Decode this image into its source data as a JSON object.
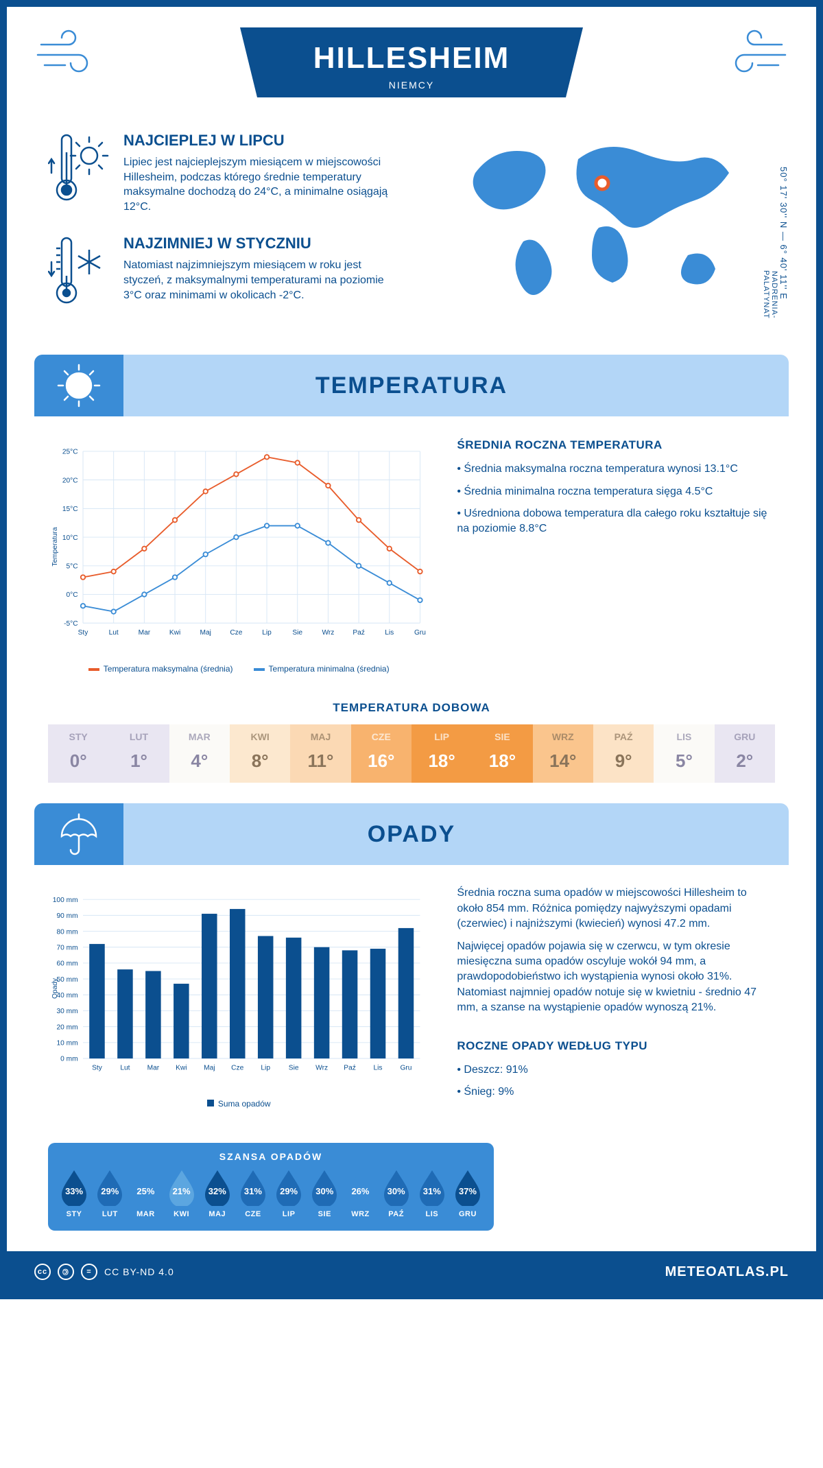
{
  "header": {
    "city": "HILLESHEIM",
    "country": "NIEMCY",
    "coords": "50° 17' 30'' N — 6° 40' 11'' E",
    "region": "NADRENIA-PALATYNAT"
  },
  "hot": {
    "title": "NAJCIEPLEJ W LIPCU",
    "text": "Lipiec jest najcieplejszym miesiącem w miejscowości Hillesheim, podczas którego średnie temperatury maksymalne dochodzą do 24°C, a minimalne osiągają 12°C."
  },
  "cold": {
    "title": "NAJZIMNIEJ W STYCZNIU",
    "text": "Natomiast najzimniejszym miesiącem w roku jest styczeń, z maksymalnymi temperaturami na poziomie 3°C oraz minimami w okolicach -2°C."
  },
  "months": [
    "Sty",
    "Lut",
    "Mar",
    "Kwi",
    "Maj",
    "Cze",
    "Lip",
    "Sie",
    "Wrz",
    "Paź",
    "Lis",
    "Gru"
  ],
  "months_upper": [
    "STY",
    "LUT",
    "MAR",
    "KWI",
    "MAJ",
    "CZE",
    "LIP",
    "SIE",
    "WRZ",
    "PAŹ",
    "LIS",
    "GRU"
  ],
  "temp_section": {
    "title": "TEMPERATURA",
    "chart": {
      "type": "line",
      "ylabel": "Temperatura",
      "ylim": [
        -5,
        25
      ],
      "ytick_step": 5,
      "ytick_labels": [
        "-5°C",
        "0°C",
        "5°C",
        "10°C",
        "15°C",
        "20°C",
        "25°C"
      ],
      "grid_color": "#d6e6f5",
      "series": [
        {
          "name": "Temperatura maksymalna (średnia)",
          "color": "#e85c2b",
          "values": [
            3,
            4,
            8,
            13,
            18,
            21,
            24,
            23,
            19,
            13,
            8,
            4
          ]
        },
        {
          "name": "Temperatura minimalna (średnia)",
          "color": "#3a8cd6",
          "values": [
            -2,
            -3,
            0,
            3,
            7,
            10,
            12,
            12,
            9,
            5,
            2,
            -1
          ]
        }
      ]
    },
    "stats_title": "ŚREDNIA ROCZNA TEMPERATURA",
    "stats": [
      "Średnia maksymalna roczna temperatura wynosi 13.1°C",
      "Średnia minimalna roczna temperatura sięga 4.5°C",
      "Uśredniona dobowa temperatura dla całego roku kształtuje się na poziomie 8.8°C"
    ],
    "daily_title": "TEMPERATURA DOBOWA",
    "daily_values": [
      "0°",
      "1°",
      "4°",
      "8°",
      "11°",
      "16°",
      "18°",
      "18°",
      "14°",
      "9°",
      "5°",
      "2°"
    ],
    "daily_colors": [
      "#e9e6f2",
      "#e9e6f2",
      "#fbfaf7",
      "#fce8cf",
      "#fbd9b4",
      "#f8b36e",
      "#f39b44",
      "#f39b44",
      "#fac58d",
      "#fce3c6",
      "#fbfaf7",
      "#e9e6f2"
    ],
    "daily_text_colors": [
      "#8a86a3",
      "#8a86a3",
      "#8a86a3",
      "#8a745a",
      "#8a745a",
      "#ffffff",
      "#ffffff",
      "#ffffff",
      "#8a745a",
      "#8a745a",
      "#8a86a3",
      "#8a86a3"
    ]
  },
  "precip_section": {
    "title": "OPADY",
    "chart": {
      "type": "bar",
      "ylabel": "Opady",
      "ylim": [
        0,
        100
      ],
      "ytick_step": 10,
      "bar_color": "#0b4f8f",
      "values": [
        72,
        56,
        55,
        47,
        91,
        94,
        77,
        76,
        70,
        68,
        69,
        82
      ]
    },
    "bar_legend": "Suma opadów",
    "text1": "Średnia roczna suma opadów w miejscowości Hillesheim to około 854 mm. Różnica pomiędzy najwyższymi opadami (czerwiec) i najniższymi (kwiecień) wynosi 47.2 mm.",
    "text2": "Najwięcej opadów pojawia się w czerwcu, w tym okresie miesięczna suma opadów oscyluje wokół 94 mm, a prawdopodobieństwo ich wystąpienia wynosi około 31%. Natomiast najmniej opadów notuje się w kwietniu - średnio 47 mm, a szanse na wystąpienie opadów wynoszą 21%.",
    "chance_title": "SZANSA OPADÓW",
    "chance_values": [
      "33%",
      "29%",
      "25%",
      "21%",
      "32%",
      "31%",
      "29%",
      "30%",
      "26%",
      "30%",
      "31%",
      "37%"
    ],
    "chance_colors": [
      "#0b4f8f",
      "#1f6bb5",
      "#3a8cd6",
      "#5ca6e0",
      "#0b4f8f",
      "#1f6bb5",
      "#1f6bb5",
      "#1f6bb5",
      "#3a8cd6",
      "#1f6bb5",
      "#1f6bb5",
      "#0b4f8f"
    ],
    "type_title": "ROCZNE OPADY WEDŁUG TYPU",
    "types": [
      "Deszcz: 91%",
      "Śnieg: 9%"
    ]
  },
  "footer": {
    "license": "CC BY-ND 4.0",
    "site": "METEOATLAS.PL"
  }
}
